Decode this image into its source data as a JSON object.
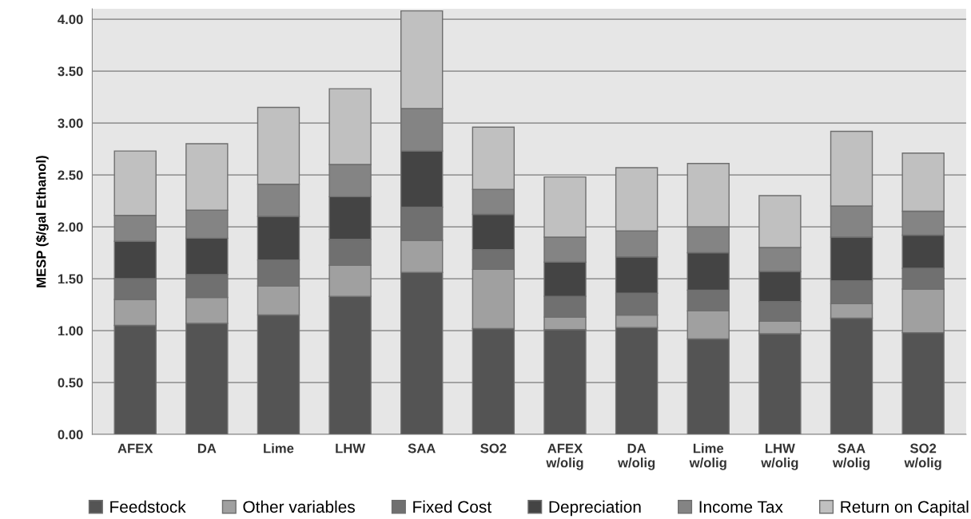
{
  "chart_data": {
    "type": "bar",
    "stacked": true,
    "ylabel": "MESP ($/gal Ethanol)",
    "categories": [
      "AFEX",
      "DA",
      "Lime",
      "LHW",
      "SAA",
      "SO2",
      "AFEX\nw/olig",
      "DA\nw/olig",
      "Lime\nw/olig",
      "LHW\nw/olig",
      "SAA\nw/olig",
      "SO2\nw/olig"
    ],
    "series": [
      {
        "name": "Feedstock",
        "color": "#545454",
        "values": [
          1.05,
          1.07,
          1.15,
          1.33,
          1.56,
          1.02,
          1.01,
          1.03,
          0.92,
          0.97,
          1.12,
          0.98
        ]
      },
      {
        "name": "Other variables",
        "color": "#a0a0a0",
        "values": [
          0.25,
          0.25,
          0.28,
          0.3,
          0.31,
          0.57,
          0.12,
          0.12,
          0.27,
          0.12,
          0.14,
          0.42
        ]
      },
      {
        "name": "Fixed Cost",
        "color": "#707070",
        "values": [
          0.2,
          0.22,
          0.25,
          0.25,
          0.32,
          0.19,
          0.2,
          0.21,
          0.2,
          0.19,
          0.22,
          0.2
        ]
      },
      {
        "name": "Depreciation",
        "color": "#444444",
        "values": [
          0.36,
          0.35,
          0.42,
          0.41,
          0.54,
          0.34,
          0.33,
          0.35,
          0.36,
          0.29,
          0.42,
          0.32
        ]
      },
      {
        "name": "Income Tax",
        "color": "#848484",
        "values": [
          0.25,
          0.27,
          0.31,
          0.31,
          0.41,
          0.24,
          0.24,
          0.25,
          0.25,
          0.23,
          0.3,
          0.23
        ]
      },
      {
        "name": "Return on Capital",
        "color": "#c0c0c0",
        "values": [
          0.62,
          0.64,
          0.74,
          0.73,
          0.94,
          0.6,
          0.58,
          0.61,
          0.61,
          0.5,
          0.72,
          0.56
        ]
      }
    ],
    "ylim": [
      0,
      4.1
    ],
    "yticks": [
      {
        "value": 0,
        "label": "0.00"
      },
      {
        "value": 0.5,
        "label": "0.50"
      },
      {
        "value": 1,
        "label": "1.00"
      },
      {
        "value": 1.5,
        "label": "1.50"
      },
      {
        "value": 2,
        "label": "2.00"
      },
      {
        "value": 2.5,
        "label": "2.50"
      },
      {
        "value": 3,
        "label": "3.00"
      },
      {
        "value": 3.5,
        "label": "3.50"
      },
      {
        "value": 4,
        "label": "4.00"
      }
    ],
    "grid": "y",
    "legend": "bottom"
  }
}
